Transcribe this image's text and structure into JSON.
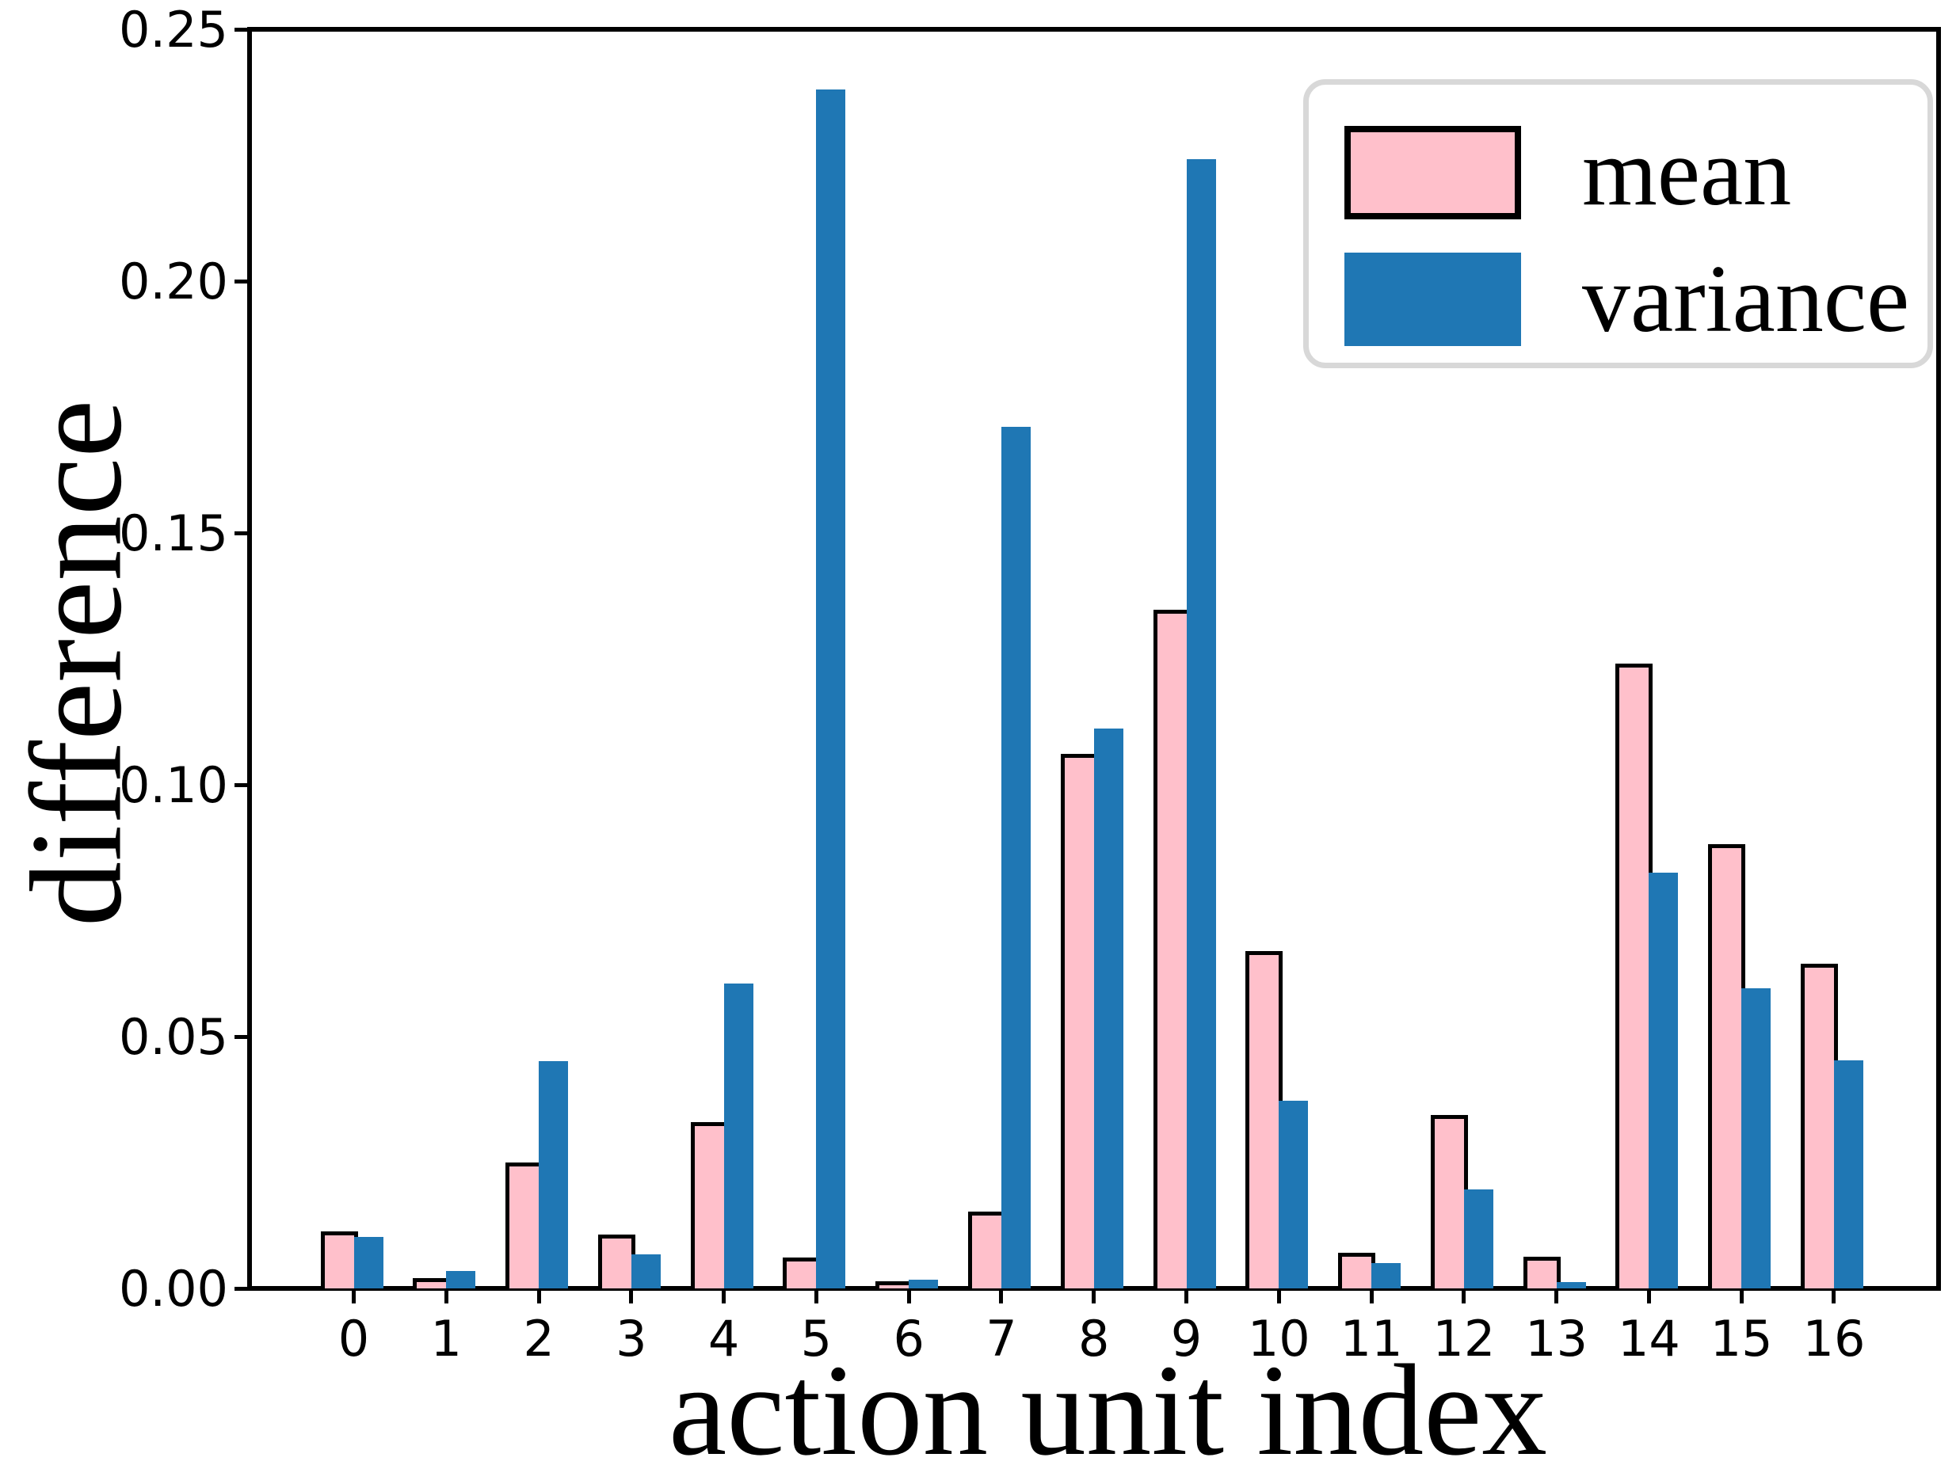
{
  "chart_data": {
    "type": "bar",
    "title": "",
    "xlabel": "action unit index",
    "ylabel": "difference",
    "categories": [
      "0",
      "1",
      "2",
      "3",
      "4",
      "5",
      "6",
      "7",
      "8",
      "9",
      "10",
      "11",
      "12",
      "13",
      "14",
      "15",
      "16"
    ],
    "series": [
      {
        "name": "mean",
        "color": "#FFC0CB",
        "edgecolor": "#000000",
        "values": [
          0.0105,
          0.0013,
          0.0242,
          0.0099,
          0.0322,
          0.0054,
          0.0006,
          0.0144,
          0.1053,
          0.134,
          0.0662,
          0.0063,
          0.0337,
          0.0055,
          0.1233,
          0.0875,
          0.0637
        ]
      },
      {
        "name": "variance",
        "color": "#1F77B4",
        "edgecolor": null,
        "values": [
          0.0103,
          0.0034,
          0.0452,
          0.0068,
          0.0605,
          0.2381,
          0.0018,
          0.171,
          0.1111,
          0.2242,
          0.0373,
          0.005,
          0.0197,
          0.0013,
          0.0826,
          0.0596,
          0.0453
        ]
      }
    ],
    "ylim": [
      0.0,
      0.25
    ],
    "yticks": [
      0.0,
      0.05,
      0.1,
      0.15,
      0.2,
      0.25
    ],
    "y_tick_labels": [
      "0.00",
      "0.05",
      "0.10",
      "0.15",
      "0.20",
      "0.25"
    ],
    "grid": false,
    "legend_position": "upper right"
  },
  "legend": {
    "items": [
      {
        "label": "mean",
        "color": "#FFC0CB",
        "edge": "#000000"
      },
      {
        "label": "variance",
        "color": "#1F77B4",
        "edge": null
      }
    ]
  }
}
